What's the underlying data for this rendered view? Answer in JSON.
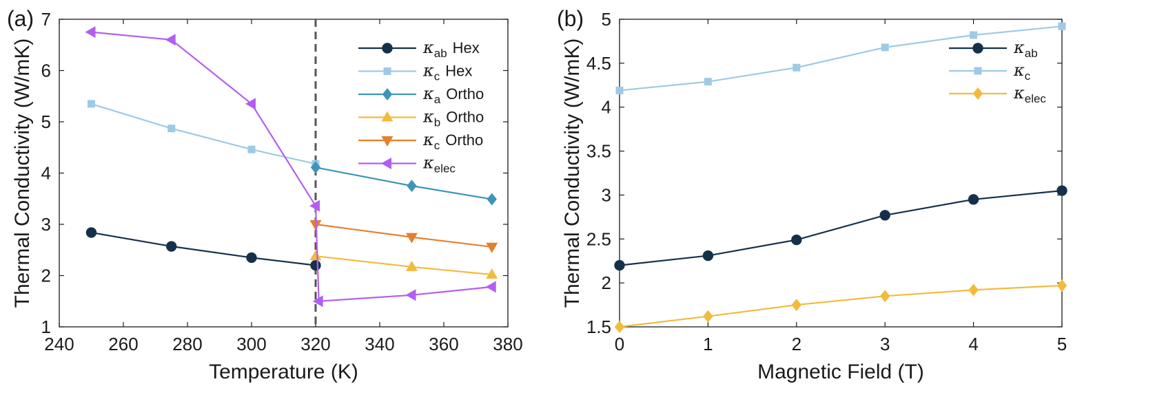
{
  "chart_data": [
    {
      "type": "line",
      "panel_label": "(a)",
      "xlabel": "Temperature (K)",
      "ylabel": "Thermal Conductivity (W/mK)",
      "xlim": [
        240,
        380
      ],
      "ylim": [
        1,
        7
      ],
      "xticks": [
        240,
        260,
        280,
        300,
        320,
        340,
        360,
        380
      ],
      "yticks": [
        1,
        2,
        3,
        4,
        5,
        6,
        7
      ],
      "grid": false,
      "legend_position": "top-right",
      "vline": {
        "x": 320,
        "style": "dashed",
        "color": "#555555"
      },
      "series": [
        {
          "name": "κab Hex",
          "symbol": "κ",
          "sub": "ab",
          "suffix": "Hex",
          "color": "#15304a",
          "marker": "circle",
          "x": [
            250,
            275,
            300,
            320
          ],
          "y": [
            2.84,
            2.57,
            2.35,
            2.2
          ]
        },
        {
          "name": "κc Hex",
          "symbol": "κ",
          "sub": "c",
          "suffix": "Hex",
          "color": "#9ecae6",
          "marker": "square",
          "x": [
            250,
            275,
            300,
            320
          ],
          "y": [
            5.35,
            4.87,
            4.46,
            4.18
          ]
        },
        {
          "name": "κa Ortho",
          "symbol": "κ",
          "sub": "a",
          "suffix": "Ortho",
          "color": "#3d95b9",
          "marker": "diamond",
          "x": [
            320,
            350,
            375
          ],
          "y": [
            4.11,
            3.75,
            3.49
          ]
        },
        {
          "name": "κb Ortho",
          "symbol": "κ",
          "sub": "b",
          "suffix": "Ortho",
          "color": "#f3bb3c",
          "marker": "triangle-up",
          "x": [
            320,
            350,
            375
          ],
          "y": [
            2.38,
            2.17,
            2.02
          ]
        },
        {
          "name": "κc Ortho",
          "symbol": "κ",
          "sub": "c",
          "suffix": "Ortho",
          "color": "#e57f2c",
          "marker": "triangle-down",
          "x": [
            320,
            350,
            375
          ],
          "y": [
            3.0,
            2.75,
            2.56
          ]
        },
        {
          "name": "κelec",
          "symbol": "κ",
          "sub": "elec",
          "suffix": "",
          "color": "#b35ef0",
          "marker": "triangle-left",
          "x": [
            250,
            275,
            300,
            320,
            321,
            350,
            375
          ],
          "y": [
            6.75,
            6.6,
            5.35,
            3.36,
            1.5,
            1.62,
            1.78
          ]
        }
      ]
    },
    {
      "type": "line",
      "panel_label": "(b)",
      "xlabel": "Magnetic Field (T)",
      "ylabel": "Thermal Conductivity (W/mK)",
      "xlim": [
        0,
        5
      ],
      "ylim": [
        1.5,
        5
      ],
      "xticks": [
        0,
        1,
        2,
        3,
        4,
        5
      ],
      "yticks": [
        1.5,
        2,
        2.5,
        3,
        3.5,
        4,
        4.5,
        5
      ],
      "ytick_labels": [
        "1.5",
        "2",
        "2.5",
        "3",
        "3.5",
        "4",
        "4.5",
        "5"
      ],
      "grid": false,
      "legend_position": "top-right",
      "series": [
        {
          "name": "κab",
          "symbol": "κ",
          "sub": "ab",
          "suffix": "",
          "color": "#15304a",
          "marker": "circle",
          "x": [
            0,
            1,
            2,
            3,
            4,
            5
          ],
          "y": [
            2.2,
            2.31,
            2.49,
            2.77,
            2.95,
            3.05
          ]
        },
        {
          "name": "κc",
          "symbol": "κ",
          "sub": "c",
          "suffix": "",
          "color": "#9ecae6",
          "marker": "square",
          "x": [
            0,
            1,
            2,
            3,
            4,
            5
          ],
          "y": [
            4.19,
            4.29,
            4.45,
            4.68,
            4.82,
            4.92
          ]
        },
        {
          "name": "κelec",
          "symbol": "κ",
          "sub": "elec",
          "suffix": "",
          "color": "#f3bb3c",
          "marker": "diamond",
          "x": [
            0,
            1,
            2,
            3,
            4,
            5
          ],
          "y": [
            1.5,
            1.62,
            1.75,
            1.85,
            1.92,
            1.97
          ]
        }
      ]
    }
  ]
}
